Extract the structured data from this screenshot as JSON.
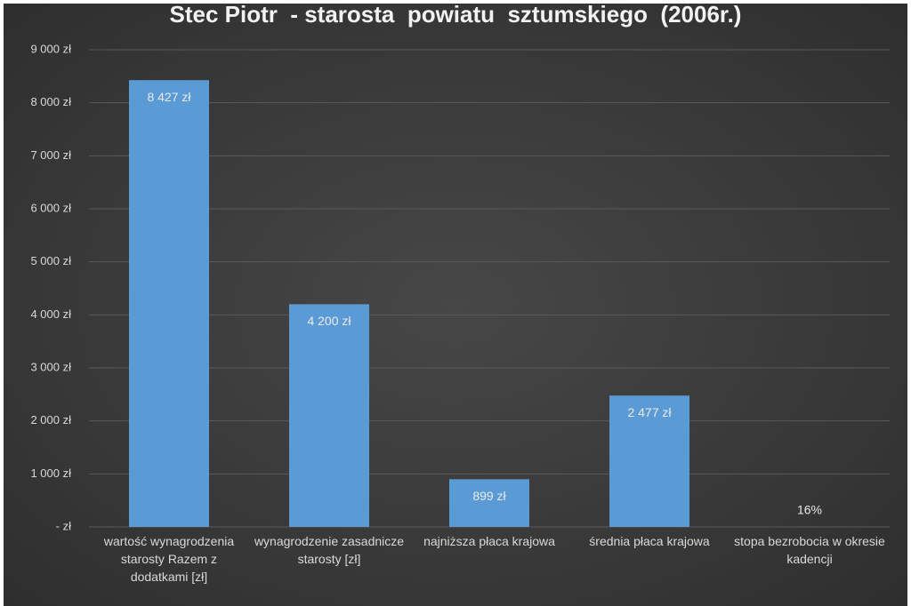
{
  "chart_data": {
    "type": "bar",
    "title": "Stec Piotr  - starosta  powiatu  sztumskiego  (2006r.)",
    "categories": [
      "wartość wynagrodzenia starosty Razem z dodatkami [zł]",
      "wynagrodzenie zasadnicze starosty [zł]",
      "najniższa płaca krajowa",
      "średnia płaca krajowa",
      "stopa bezrobocia w okresie kadencji"
    ],
    "values": [
      8427,
      4200,
      899,
      2477,
      0.16
    ],
    "value_labels": [
      "8 427 zł",
      "4 200 zł",
      "899 zł",
      "2 477 zł",
      "16%"
    ],
    "color": "#5b9bd5",
    "ylim": [
      0,
      9000
    ],
    "yticks": [
      {
        "value": 0,
        "label": "- zł"
      },
      {
        "value": 1000,
        "label": "1 000 zł"
      },
      {
        "value": 2000,
        "label": "2 000 zł"
      },
      {
        "value": 3000,
        "label": "3 000 zł"
      },
      {
        "value": 4000,
        "label": "4 000 zł"
      },
      {
        "value": 5000,
        "label": "5 000 zł"
      },
      {
        "value": 6000,
        "label": "6 000 zł"
      },
      {
        "value": 7000,
        "label": "7 000 zł"
      },
      {
        "value": 8000,
        "label": "8 000 zł"
      },
      {
        "value": 9000,
        "label": "9 000 zł"
      }
    ],
    "grid": true
  }
}
